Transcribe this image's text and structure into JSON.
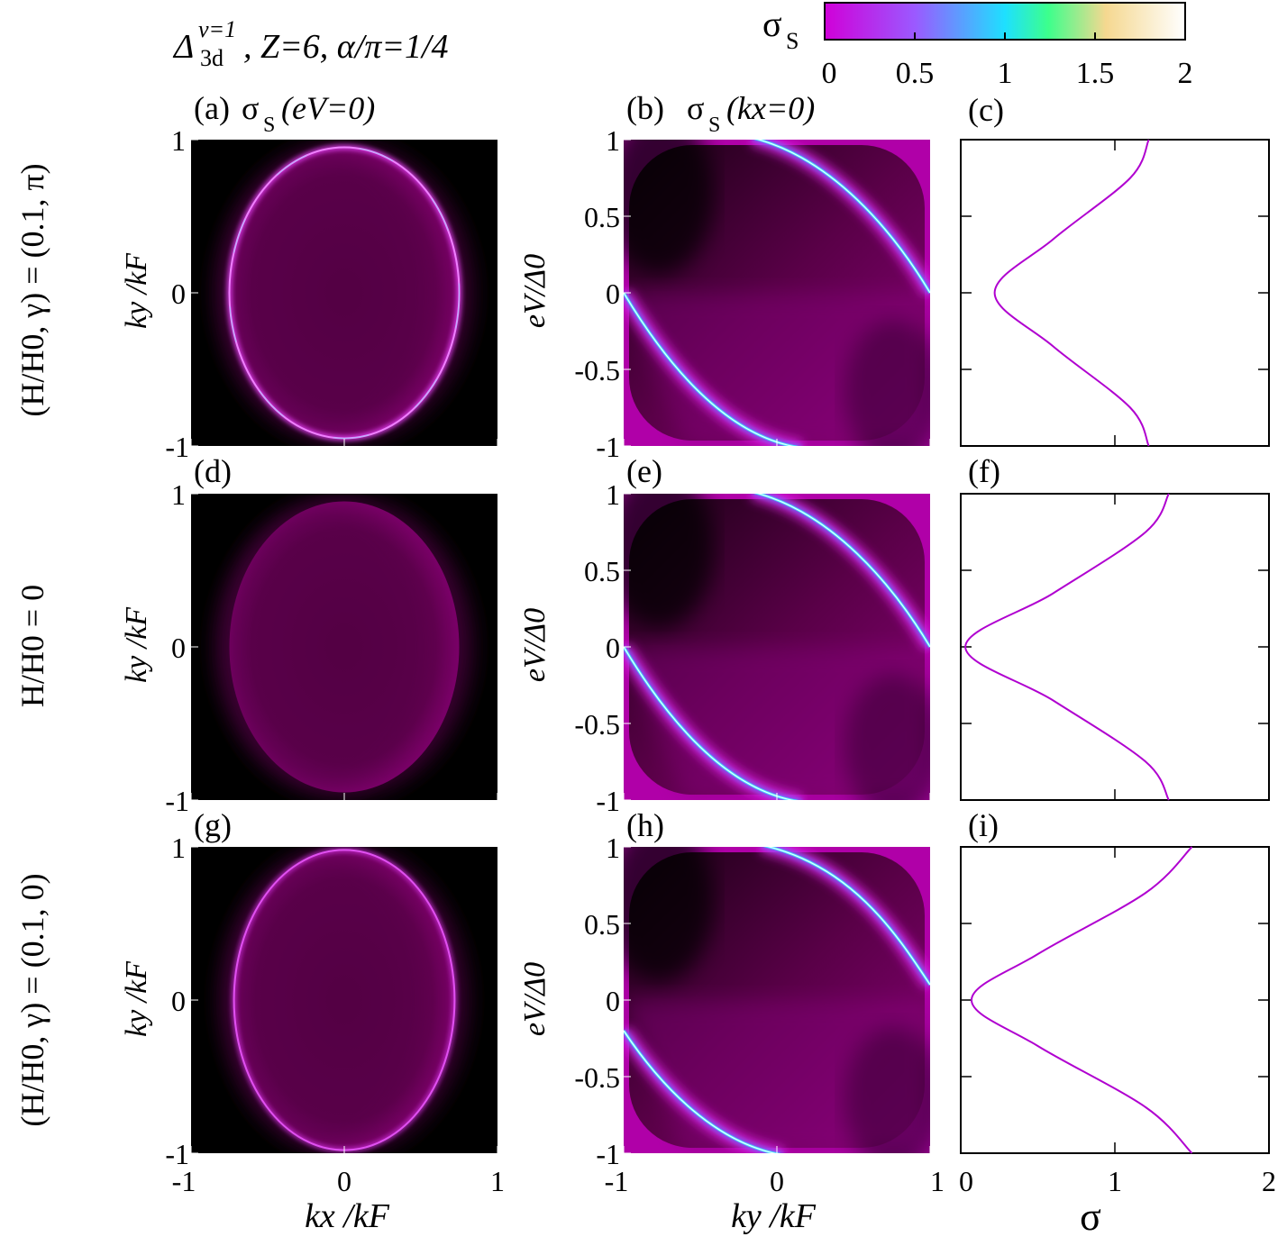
{
  "figure": {
    "title_base": "Δ",
    "title_sup": "ν=1",
    "title_sub": "3d",
    "title_rest": ", Z=6, α/π=1/4"
  },
  "colorbar": {
    "label_base": "σ",
    "label_sub": "S",
    "ticks": [
      "0",
      "0.5",
      "1",
      "1.5",
      "2"
    ],
    "range": [
      0,
      2
    ],
    "colors": [
      "#d000d8",
      "#9b59ff",
      "#1ee0ff",
      "#3cff8c",
      "#f5d890",
      "#ffffff"
    ]
  },
  "row_labels": [
    "(H/H0, γ) = (0.1, π)",
    "H/H0 = 0",
    "(H/H0, γ) = (0.1, 0)"
  ],
  "panel_labels": [
    "(a)",
    "(b)",
    "(c)",
    "(d)",
    "(e)",
    "(f)",
    "(g)",
    "(h)",
    "(i)"
  ],
  "col_titles": {
    "a_base": "σ",
    "a_sub": "S",
    "a_arg": "(eV=0)",
    "b_base": "σ",
    "b_sub": "S",
    "b_arg": "(kx=0)"
  },
  "axes": {
    "col1_xlabel": "kx /kF",
    "col1_ylabel": "ky /kF",
    "col2_xlabel": "ky /kF",
    "col2_ylabel": "eV/Δ0",
    "col3_xlabel": "σ",
    "col1_xticks": [
      "-1",
      "0",
      "1"
    ],
    "col1_yticks": [
      "1",
      "0",
      "-1"
    ],
    "col2_xticks": [
      "-1",
      "0",
      "1"
    ],
    "col2_yticks": [
      "1",
      "0.5",
      "0",
      "-0.5",
      "-1"
    ],
    "col3_xticks": [
      "0",
      "1",
      "2"
    ]
  },
  "chart_data": [
    {
      "type": "heatmap",
      "panel": "(a)",
      "description_kind": "sigma_S(eV=0) vs kx, ky",
      "x_range": [
        -1,
        1
      ],
      "y_range": [
        -1,
        1
      ],
      "features": {
        "ellipse_semi_axis_kx": 0.75,
        "ellipse_semi_axis_ky": 0.95,
        "ring": "bright"
      }
    },
    {
      "type": "heatmap",
      "panel": "(b)",
      "x_range": [
        -1,
        1
      ],
      "y_range": [
        -1,
        1
      ],
      "features": {
        "bright_branch_upper": "from (-0.1,1) to (1,0)",
        "bright_branch_lower": "from (-1,0) to (0.1,-1)"
      }
    },
    {
      "type": "line",
      "panel": "(c)",
      "xlim": [
        0,
        2
      ],
      "ylim": [
        -1,
        1
      ],
      "series": [
        {
          "x": [
            1.22,
            1.1,
            0.6,
            0.22,
            0.6,
            1.1,
            1.22
          ],
          "y": [
            1,
            0.75,
            0.35,
            0,
            -0.35,
            -0.75,
            -1
          ]
        }
      ],
      "color": "#b000d0"
    },
    {
      "type": "heatmap",
      "panel": "(d)",
      "x_range": [
        -1,
        1
      ],
      "y_range": [
        -1,
        1
      ],
      "features": {
        "ellipse_semi_axis_kx": 0.75,
        "ellipse_semi_axis_ky": 0.95,
        "ring": "none"
      }
    },
    {
      "type": "heatmap",
      "panel": "(e)",
      "x_range": [
        -1,
        1
      ],
      "y_range": [
        -1,
        1
      ],
      "features": {
        "bright_branch_upper": "from (-0.1,1) to (1,0)",
        "bright_branch_lower": "from (-1,0) to (0.1,-1)"
      }
    },
    {
      "type": "line",
      "panel": "(f)",
      "xlim": [
        0,
        2
      ],
      "ylim": [
        -1,
        1
      ],
      "series": [
        {
          "x": [
            1.35,
            1.2,
            0.6,
            0.03,
            0.6,
            1.2,
            1.35
          ],
          "y": [
            1,
            0.75,
            0.35,
            0,
            -0.35,
            -0.75,
            -1
          ]
        }
      ],
      "color": "#b000d0"
    },
    {
      "type": "heatmap",
      "panel": "(g)",
      "x_range": [
        -1,
        1
      ],
      "y_range": [
        -1,
        1
      ],
      "features": {
        "ellipse_semi_axis_kx": 0.72,
        "ellipse_semi_axis_ky": 0.98,
        "ring": "medium"
      }
    },
    {
      "type": "heatmap",
      "panel": "(h)",
      "x_range": [
        -1,
        1
      ],
      "y_range": [
        -1,
        1
      ],
      "features": {
        "bright_branch_upper": "from (0,1) to (1,0.15)",
        "bright_branch_lower": "from (-1,-0.25) to (0.1,-1)"
      }
    },
    {
      "type": "line",
      "panel": "(i)",
      "xlim": [
        0,
        2
      ],
      "ylim": [
        -1,
        1
      ],
      "series": [
        {
          "x": [
            1.5,
            1.2,
            0.5,
            0.07,
            0.5,
            1.2,
            1.5
          ],
          "y": [
            1,
            0.7,
            0.3,
            0,
            -0.3,
            -0.7,
            -1
          ]
        }
      ],
      "color": "#b000d0"
    }
  ]
}
